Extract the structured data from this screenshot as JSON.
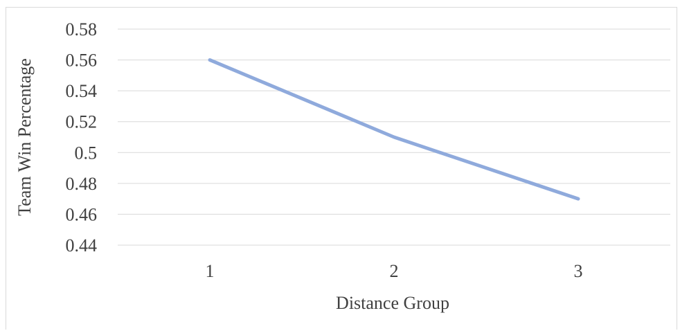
{
  "chart_data": {
    "type": "line",
    "categories": [
      "1",
      "2",
      "3"
    ],
    "series": [
      {
        "values": [
          0.56,
          0.51,
          0.47
        ],
        "color": "#8faadc"
      }
    ],
    "title": "",
    "xlabel": "Distance Group",
    "ylabel": "Team Win Percentage",
    "ylim": [
      0.44,
      0.58
    ],
    "yticks": [
      "0.44",
      "0.46",
      "0.48",
      "0.5",
      "0.52",
      "0.54",
      "0.56",
      "0.58"
    ],
    "grid": true,
    "legend": "none",
    "gridline_color": "#d9d9d9",
    "text_color": "#404040"
  }
}
